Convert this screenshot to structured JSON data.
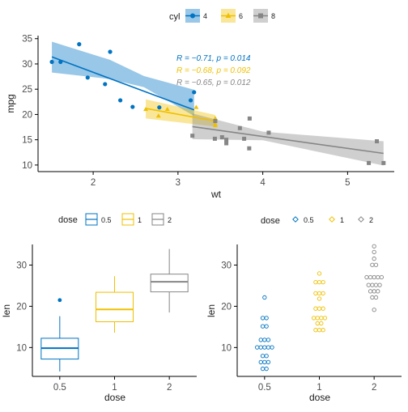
{
  "colors": {
    "0.5": "#0073C2",
    "1": "#EFC000",
    "2": "#868686",
    "4": "#0073C2",
    "6": "#EFC000",
    "8": "#868686"
  },
  "chart_data": [
    {
      "type": "scatter",
      "xlabel": "wt",
      "ylabel": "mpg",
      "xlim": [
        1.35,
        5.55
      ],
      "ylim": [
        8.7,
        35.6
      ],
      "xticks": [
        2,
        3,
        4,
        5
      ],
      "yticks": [
        10,
        15,
        20,
        25,
        30,
        35
      ],
      "legend": {
        "title": "cyl",
        "placement": "top",
        "labels": [
          "4",
          "6",
          "8"
        ]
      },
      "series": [
        {
          "name": "4",
          "points": [
            [
              2.32,
              22.8
            ],
            [
              3.19,
              24.4
            ],
            [
              3.15,
              22.8
            ],
            [
              2.2,
              32.4
            ],
            [
              1.615,
              30.4
            ],
            [
              1.835,
              33.9
            ],
            [
              2.465,
              21.5
            ],
            [
              1.935,
              27.3
            ],
            [
              2.14,
              26
            ],
            [
              1.513,
              30.4
            ],
            [
              2.78,
              21.4
            ]
          ],
          "fit": [
            [
              1.513,
              31.4
            ],
            [
              3.19,
              20.9
            ]
          ],
          "band_lo": [
            [
              1.513,
              28.3
            ],
            [
              2.2,
              27.0
            ],
            [
              2.6,
              25.4
            ],
            [
              3.19,
              19.7
            ]
          ],
          "band_hi": [
            [
              1.513,
              34.4
            ],
            [
              2.2,
              30.8
            ],
            [
              2.6,
              27.6
            ],
            [
              3.19,
              24.9
            ]
          ],
          "stat": {
            "R": "−0.71",
            "p": "0.014"
          }
        },
        {
          "name": "6",
          "points": [
            [
              2.62,
              21
            ],
            [
              2.875,
              21
            ],
            [
              3.215,
              21.4
            ],
            [
              3.44,
              18.1
            ],
            [
              3.44,
              19.2
            ],
            [
              3.44,
              17.8
            ],
            [
              2.77,
              19.7
            ]
          ],
          "fit": [
            [
              2.62,
              21.2
            ],
            [
              3.44,
              18.7
            ]
          ],
          "band_lo": [
            [
              2.62,
              19.2
            ],
            [
              3.44,
              17.6
            ]
          ],
          "band_hi": [
            [
              2.62,
              23.0
            ],
            [
              3.44,
              19.9
            ]
          ],
          "stat": {
            "R": "−0.68",
            "p": "0.092"
          }
        },
        {
          "name": "8",
          "points": [
            [
              3.44,
              18.7
            ],
            [
              3.57,
              14.3
            ],
            [
              4.07,
              16.4
            ],
            [
              3.73,
              17.3
            ],
            [
              3.78,
              15.2
            ],
            [
              5.25,
              10.4
            ],
            [
              5.424,
              10.4
            ],
            [
              5.345,
              14.7
            ],
            [
              3.52,
              15.5
            ],
            [
              3.435,
              15.2
            ],
            [
              3.84,
              13.3
            ],
            [
              3.845,
              19.2
            ],
            [
              3.17,
              15.8
            ],
            [
              3.57,
              15
            ]
          ],
          "fit": [
            [
              3.17,
              17.6
            ],
            [
              5.424,
              12.3
            ]
          ],
          "band_lo": [
            [
              3.17,
              15.1
            ],
            [
              4.0,
              14.9
            ],
            [
              5.424,
              9.9
            ]
          ],
          "band_hi": [
            [
              3.17,
              20.2
            ],
            [
              4.0,
              16.6
            ],
            [
              5.424,
              14.7
            ]
          ],
          "stat": {
            "R": "−0.65",
            "p": "0.012"
          }
        }
      ]
    },
    {
      "type": "box",
      "xlabel": "dose",
      "ylabel": "len",
      "categories": [
        "0.5",
        "1",
        "2"
      ],
      "ylim": [
        3.0,
        35.0
      ],
      "yticks": [
        10,
        20,
        30
      ],
      "legend": {
        "title": "dose",
        "placement": "top",
        "labels": [
          "0.5",
          "1",
          "2"
        ]
      },
      "boxes": [
        {
          "name": "0.5",
          "low": 4.2,
          "q1": 7.2,
          "median": 9.85,
          "q3": 12.25,
          "high": 17.6,
          "outliers": [
            21.5
          ]
        },
        {
          "name": "1",
          "low": 13.6,
          "q1": 16.25,
          "median": 19.25,
          "q3": 23.4,
          "high": 27.3,
          "outliers": []
        },
        {
          "name": "2",
          "low": 18.5,
          "q1": 23.5,
          "median": 25.95,
          "q3": 27.8,
          "high": 33.9,
          "outliers": []
        }
      ]
    },
    {
      "type": "dotplot",
      "xlabel": "dose",
      "ylabel": "len",
      "categories": [
        "0.5",
        "1",
        "2"
      ],
      "ylim": [
        3.0,
        35.0
      ],
      "yticks": [
        10,
        20,
        30
      ],
      "legend": {
        "title": "dose",
        "placement": "top",
        "labels": [
          "0.5",
          "1",
          "2"
        ]
      },
      "groups": [
        {
          "name": "0.5",
          "values": [
            4.2,
            11.5,
            7.3,
            5.8,
            6.4,
            10,
            11.2,
            11.2,
            5.2,
            7,
            15.2,
            21.5,
            17.6,
            9.7,
            14.5,
            10,
            8.2,
            9.4,
            16.5,
            9.7
          ]
        },
        {
          "name": "1",
          "values": [
            16.5,
            16.5,
            15.2,
            17.3,
            22.5,
            17.3,
            13.6,
            14.5,
            18.8,
            15.5,
            19.7,
            23.3,
            23.6,
            26.4,
            20,
            25.2,
            25.8,
            21.2,
            14.5,
            27.3
          ]
        },
        {
          "name": "2",
          "values": [
            23.6,
            18.5,
            33.9,
            25.5,
            26.4,
            32.5,
            26.7,
            21.5,
            23.3,
            29.5,
            25.5,
            26.4,
            22.4,
            24.5,
            24.8,
            30.9,
            26.4,
            27.3,
            29.4,
            23
          ]
        }
      ]
    }
  ]
}
